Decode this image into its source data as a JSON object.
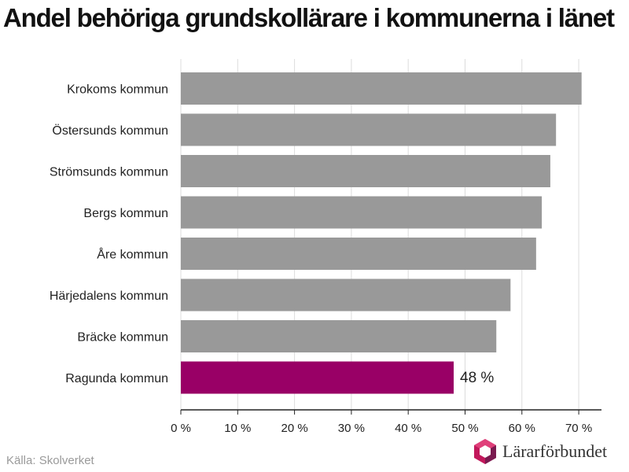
{
  "chart_data": {
    "type": "bar",
    "orientation": "horizontal",
    "title": "Andel behöriga grundskollärare i kommunerna i länet",
    "categories": [
      "Krokoms kommun",
      "Östersunds kommun",
      "Strömsunds kommun",
      "Bergs kommun",
      "Åre kommun",
      "Härjedalens kommun",
      "Bräcke kommun",
      "Ragunda kommun"
    ],
    "values": [
      70.5,
      66,
      65,
      63.5,
      62.5,
      58,
      55.5,
      48
    ],
    "highlight_index": 7,
    "data_labels": [
      {
        "index": 7,
        "text": "48 %"
      }
    ],
    "xlim": [
      0,
      74
    ],
    "xticks": [
      0,
      10,
      20,
      30,
      40,
      50,
      60,
      70
    ],
    "xtick_labels": [
      "0 %",
      "10 %",
      "20 %",
      "30 %",
      "40 %",
      "50 %",
      "60 %",
      "70 %"
    ],
    "grid": "vertical",
    "xlabel": "",
    "ylabel": ""
  },
  "colors": {
    "bar": "#999999",
    "highlight": "#990066",
    "grid": "#dddddd",
    "axis": "#222222",
    "text": "#222222"
  },
  "source": "Källa: Skolverket",
  "brand": {
    "name": "Lärarförbundet",
    "icon": "lararforbundet-logo-icon"
  }
}
